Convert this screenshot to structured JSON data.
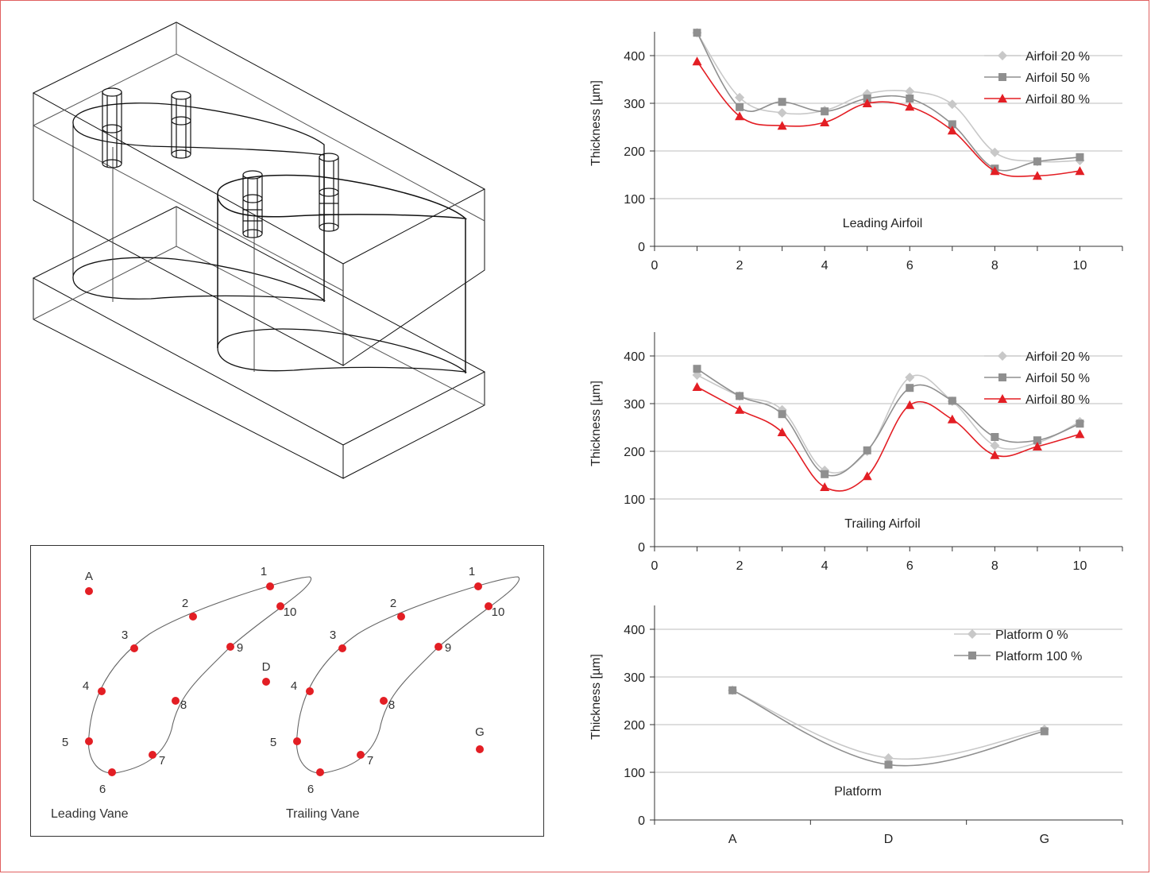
{
  "vanes": {
    "leading_label": "Leading Vane",
    "trailing_label": "Trailing Vane",
    "points": [
      "1",
      "2",
      "3",
      "4",
      "5",
      "6",
      "7",
      "8",
      "9",
      "10"
    ],
    "extra": {
      "A": "A",
      "D": "D",
      "G": "G"
    },
    "colors": {
      "dot": "#e31e24",
      "outline": "#666666"
    }
  },
  "chart_data": [
    {
      "type": "line",
      "title": "Leading Airfoil",
      "xlabel": "",
      "ylabel": "Thickness [µm]",
      "xlim": [
        0,
        11
      ],
      "ylim": [
        0,
        450
      ],
      "xticks": [
        "0",
        "2",
        "4",
        "6",
        "8",
        "10"
      ],
      "yticks": [
        "0",
        "100",
        "200",
        "300",
        "400"
      ],
      "grid": "horizontal",
      "legend": "top-right",
      "x": [
        1,
        2,
        3,
        4,
        5,
        6,
        7,
        8,
        9,
        10
      ],
      "series": [
        {
          "name": "Airfoil 20 %",
          "color": "#c8c8c8",
          "marker": "diamond",
          "values": [
            448,
            312,
            280,
            285,
            320,
            325,
            298,
            197,
            178,
            180
          ]
        },
        {
          "name": "Airfoil 50 %",
          "color": "#8f8f8f",
          "marker": "square",
          "values": [
            448,
            292,
            303,
            283,
            310,
            310,
            256,
            163,
            178,
            187
          ]
        },
        {
          "name": "Airfoil 80 %",
          "color": "#e31e24",
          "marker": "triangle",
          "values": [
            388,
            273,
            253,
            260,
            300,
            293,
            243,
            158,
            148,
            158
          ]
        }
      ]
    },
    {
      "type": "line",
      "title": "Trailing Airfoil",
      "xlabel": "",
      "ylabel": "Thickness [µm]",
      "xlim": [
        0,
        11
      ],
      "ylim": [
        0,
        450
      ],
      "xticks": [
        "0",
        "2",
        "4",
        "6",
        "8",
        "10"
      ],
      "yticks": [
        "0",
        "100",
        "200",
        "300",
        "400"
      ],
      "grid": "horizontal",
      "legend": "top-right",
      "x": [
        1,
        2,
        3,
        4,
        5,
        6,
        7,
        8,
        9,
        10
      ],
      "series": [
        {
          "name": "Airfoil 20 %",
          "color": "#c8c8c8",
          "marker": "diamond",
          "values": [
            360,
            316,
            287,
            160,
            200,
            355,
            305,
            212,
            218,
            262
          ]
        },
        {
          "name": "Airfoil 50 %",
          "color": "#8f8f8f",
          "marker": "square",
          "values": [
            373,
            316,
            278,
            152,
            202,
            333,
            306,
            230,
            223,
            258
          ]
        },
        {
          "name": "Airfoil 80 %",
          "color": "#e31e24",
          "marker": "triangle",
          "values": [
            335,
            287,
            240,
            125,
            148,
            297,
            267,
            192,
            210,
            236
          ]
        }
      ]
    },
    {
      "type": "line",
      "title": "Platform",
      "xlabel": "",
      "ylabel": "Thickness [µm]",
      "ylim": [
        0,
        450
      ],
      "categories": [
        "A",
        "D",
        "G"
      ],
      "yticks": [
        "0",
        "100",
        "200",
        "300",
        "400"
      ],
      "grid": "horizontal",
      "legend": "top-right",
      "series": [
        {
          "name": "Platform 0 %",
          "color": "#c8c8c8",
          "marker": "diamond",
          "values": [
            272,
            130,
            190
          ]
        },
        {
          "name": "Platform 100 %",
          "color": "#8f8f8f",
          "marker": "square",
          "values": [
            272,
            116,
            186
          ]
        }
      ]
    }
  ]
}
